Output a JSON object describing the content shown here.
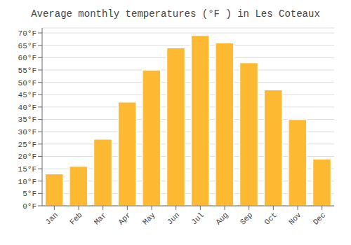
{
  "chart_data": {
    "type": "bar",
    "title": "Average monthly temperatures (°F ) in Les Coteaux",
    "categories": [
      "Jan",
      "Feb",
      "Mar",
      "Apr",
      "May",
      "Jun",
      "Jul",
      "Aug",
      "Sep",
      "Oct",
      "Nov",
      "Dec"
    ],
    "values": [
      13,
      16,
      27,
      42,
      55,
      64,
      69,
      66,
      58,
      47,
      35,
      19
    ],
    "color": "#FDB931",
    "ylim": [
      0,
      72
    ],
    "yticks": [
      {
        "value": 0,
        "label": "0°F"
      },
      {
        "value": 5,
        "label": "5°F"
      },
      {
        "value": 10,
        "label": "10°F"
      },
      {
        "value": 15,
        "label": "15°F"
      },
      {
        "value": 20,
        "label": "20°F"
      },
      {
        "value": 25,
        "label": "25°F"
      },
      {
        "value": 30,
        "label": "30°F"
      },
      {
        "value": 35,
        "label": "35°F"
      },
      {
        "value": 40,
        "label": "40°F"
      },
      {
        "value": 45,
        "label": "45°F"
      },
      {
        "value": 50,
        "label": "50°F"
      },
      {
        "value": 55,
        "label": "55°F"
      },
      {
        "value": 60,
        "label": "60°F"
      },
      {
        "value": 65,
        "label": "65°F"
      },
      {
        "value": 70,
        "label": "70°F"
      }
    ],
    "grid": true
  }
}
